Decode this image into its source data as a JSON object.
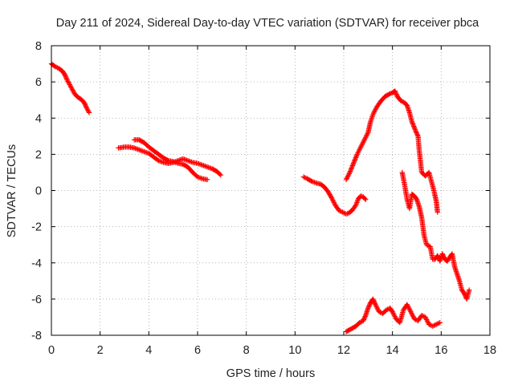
{
  "chart_data": {
    "type": "scatter",
    "title": "Day 211 of 2024, Sidereal Day-to-day VTEC variation (SDTVAR) for receiver pbca",
    "xlabel": "GPS time / hours",
    "ylabel": "SDTVAR / TECUs",
    "xlim": [
      0,
      18
    ],
    "ylim": [
      -8,
      8
    ],
    "xticks": [
      0,
      2,
      4,
      6,
      8,
      10,
      12,
      14,
      16,
      18
    ],
    "yticks": [
      -8,
      -6,
      -4,
      -2,
      0,
      2,
      4,
      6,
      8
    ],
    "grid": true,
    "marker": "+",
    "color": "#ff0000",
    "series": [
      {
        "name": "seg1",
        "points": [
          [
            0.0,
            7.0
          ],
          [
            0.15,
            6.85
          ],
          [
            0.3,
            6.75
          ],
          [
            0.45,
            6.6
          ],
          [
            0.55,
            6.4
          ],
          [
            0.65,
            6.1
          ],
          [
            0.75,
            5.85
          ],
          [
            0.85,
            5.6
          ],
          [
            0.95,
            5.35
          ],
          [
            1.05,
            5.2
          ],
          [
            1.15,
            5.1
          ],
          [
            1.25,
            5.0
          ],
          [
            1.35,
            4.85
          ],
          [
            1.45,
            4.55
          ],
          [
            1.55,
            4.3
          ]
        ]
      },
      {
        "name": "seg2",
        "points": [
          [
            2.75,
            2.35
          ],
          [
            3.0,
            2.4
          ],
          [
            3.2,
            2.4
          ],
          [
            3.4,
            2.35
          ],
          [
            3.6,
            2.25
          ],
          [
            3.8,
            2.15
          ],
          [
            4.0,
            2.05
          ],
          [
            4.2,
            1.85
          ],
          [
            4.4,
            1.65
          ],
          [
            4.6,
            1.55
          ],
          [
            4.8,
            1.5
          ],
          [
            5.0,
            1.55
          ],
          [
            5.2,
            1.65
          ],
          [
            5.4,
            1.75
          ],
          [
            5.6,
            1.65
          ],
          [
            5.8,
            1.55
          ],
          [
            6.0,
            1.5
          ],
          [
            6.2,
            1.4
          ],
          [
            6.4,
            1.3
          ],
          [
            6.6,
            1.2
          ],
          [
            6.8,
            1.05
          ],
          [
            6.95,
            0.85
          ]
        ]
      },
      {
        "name": "seg3",
        "points": [
          [
            3.4,
            2.8
          ],
          [
            3.6,
            2.8
          ],
          [
            3.8,
            2.65
          ],
          [
            4.0,
            2.4
          ],
          [
            4.2,
            2.2
          ],
          [
            4.4,
            2.0
          ],
          [
            4.6,
            1.8
          ],
          [
            4.8,
            1.65
          ],
          [
            5.0,
            1.6
          ],
          [
            5.2,
            1.5
          ],
          [
            5.4,
            1.45
          ],
          [
            5.6,
            1.3
          ],
          [
            5.8,
            1.0
          ],
          [
            6.0,
            0.75
          ],
          [
            6.2,
            0.65
          ],
          [
            6.4,
            0.6
          ]
        ]
      },
      {
        "name": "seg4",
        "points": [
          [
            10.35,
            0.75
          ],
          [
            10.5,
            0.65
          ],
          [
            10.7,
            0.5
          ],
          [
            10.9,
            0.4
          ],
          [
            11.05,
            0.35
          ],
          [
            11.2,
            0.2
          ],
          [
            11.35,
            -0.05
          ],
          [
            11.5,
            -0.4
          ],
          [
            11.65,
            -0.8
          ],
          [
            11.8,
            -1.1
          ],
          [
            11.95,
            -1.2
          ],
          [
            12.1,
            -1.3
          ],
          [
            12.2,
            -1.25
          ],
          [
            12.35,
            -1.1
          ],
          [
            12.5,
            -0.8
          ],
          [
            12.6,
            -0.45
          ],
          [
            12.7,
            -0.3
          ],
          [
            12.8,
            -0.35
          ],
          [
            12.9,
            -0.5
          ]
        ]
      },
      {
        "name": "seg5",
        "points": [
          [
            12.1,
            0.6
          ],
          [
            12.25,
            1.0
          ],
          [
            12.4,
            1.5
          ],
          [
            12.55,
            2.0
          ],
          [
            12.7,
            2.4
          ],
          [
            12.85,
            2.8
          ],
          [
            13.0,
            3.2
          ],
          [
            13.1,
            3.8
          ],
          [
            13.2,
            4.2
          ],
          [
            13.35,
            4.6
          ],
          [
            13.5,
            4.9
          ],
          [
            13.7,
            5.2
          ],
          [
            13.9,
            5.35
          ],
          [
            14.0,
            5.4
          ],
          [
            14.1,
            5.5
          ],
          [
            14.2,
            5.2
          ],
          [
            14.35,
            4.95
          ],
          [
            14.5,
            4.85
          ],
          [
            14.6,
            4.7
          ],
          [
            14.7,
            4.3
          ],
          [
            14.8,
            3.8
          ],
          [
            14.95,
            3.3
          ],
          [
            15.05,
            3.0
          ],
          [
            15.1,
            2.2
          ],
          [
            15.2,
            1.0
          ],
          [
            15.35,
            0.8
          ],
          [
            15.5,
            1.0
          ],
          [
            15.6,
            0.5
          ],
          [
            15.7,
            0.0
          ],
          [
            15.8,
            -0.6
          ],
          [
            15.85,
            -1.2
          ]
        ]
      },
      {
        "name": "seg6",
        "points": [
          [
            14.4,
            1.0
          ],
          [
            14.5,
            0.3
          ],
          [
            14.6,
            -0.5
          ],
          [
            14.7,
            -1.0
          ],
          [
            14.8,
            -0.2
          ],
          [
            14.9,
            -0.3
          ],
          [
            15.0,
            -0.5
          ],
          [
            15.1,
            -0.9
          ],
          [
            15.2,
            -1.5
          ],
          [
            15.3,
            -2.5
          ],
          [
            15.4,
            -3.0
          ],
          [
            15.55,
            -3.1
          ],
          [
            15.65,
            -3.8
          ],
          [
            15.75,
            -3.8
          ],
          [
            15.85,
            -3.6
          ],
          [
            15.95,
            -3.9
          ],
          [
            16.05,
            -3.5
          ],
          [
            16.15,
            -3.8
          ],
          [
            16.25,
            -3.9
          ],
          [
            16.35,
            -3.7
          ],
          [
            16.45,
            -3.5
          ],
          [
            16.55,
            -4.2
          ],
          [
            16.65,
            -4.6
          ],
          [
            16.75,
            -5.0
          ],
          [
            16.85,
            -5.5
          ],
          [
            16.95,
            -5.7
          ],
          [
            17.05,
            -6.0
          ],
          [
            17.15,
            -5.5
          ]
        ]
      },
      {
        "name": "seg7",
        "points": [
          [
            12.1,
            -7.8
          ],
          [
            12.3,
            -7.65
          ],
          [
            12.5,
            -7.5
          ],
          [
            12.65,
            -7.3
          ],
          [
            12.8,
            -7.2
          ],
          [
            12.9,
            -6.9
          ],
          [
            13.0,
            -6.5
          ],
          [
            13.1,
            -6.2
          ],
          [
            13.2,
            -6.0
          ],
          [
            13.3,
            -6.3
          ],
          [
            13.45,
            -6.7
          ],
          [
            13.6,
            -6.8
          ],
          [
            13.75,
            -6.6
          ],
          [
            13.9,
            -6.5
          ],
          [
            14.0,
            -6.7
          ],
          [
            14.15,
            -7.1
          ],
          [
            14.3,
            -7.3
          ],
          [
            14.45,
            -6.6
          ],
          [
            14.6,
            -6.3
          ],
          [
            14.75,
            -6.7
          ],
          [
            14.9,
            -7.1
          ],
          [
            15.05,
            -7.2
          ],
          [
            15.2,
            -6.9
          ],
          [
            15.35,
            -7.0
          ],
          [
            15.5,
            -7.4
          ],
          [
            15.65,
            -7.5
          ],
          [
            15.8,
            -7.4
          ],
          [
            15.95,
            -7.3
          ]
        ]
      }
    ]
  }
}
